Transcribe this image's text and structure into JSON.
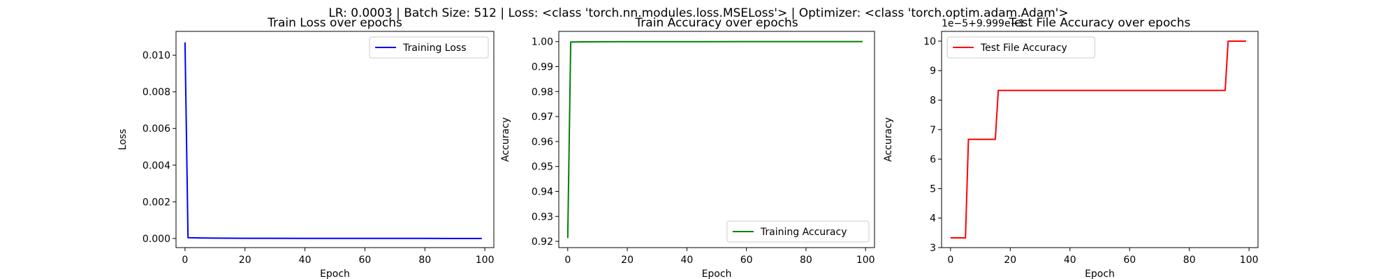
{
  "suptitle": "LR: 0.0003 | Batch Size: 512 | Loss: <class 'torch.nn.modules.loss.MSELoss'> | Optimizer: <class 'torch.optim.adam.Adam'>",
  "chart_data": [
    {
      "type": "line",
      "title": "Train Loss over epochs",
      "xlabel": "Epoch",
      "ylabel": "Loss",
      "xlim": [
        -3,
        103
      ],
      "ylim": [
        -0.0005,
        0.0113
      ],
      "xticks": [
        0,
        20,
        40,
        60,
        80,
        100
      ],
      "xtick_labels": [
        "0",
        "20",
        "40",
        "60",
        "80",
        "100"
      ],
      "yticks": [
        0,
        0.002,
        0.004,
        0.006,
        0.008,
        0.01
      ],
      "ytick_labels": [
        "0.000",
        "0.002",
        "0.004",
        "0.006",
        "0.008",
        "0.010"
      ],
      "offset_text": "",
      "legend_loc": "upper right",
      "grid": false,
      "series": [
        {
          "name": "Training Loss",
          "color": "#0000ff",
          "x": [
            0,
            1,
            5,
            10,
            20,
            40,
            60,
            80,
            99
          ],
          "y": [
            0.0107,
            4e-05,
            3e-05,
            2e-05,
            1e-05,
            5e-06,
            3e-06,
            2e-06,
            1e-06
          ]
        }
      ]
    },
    {
      "type": "line",
      "title": "Train Accuracy over epochs",
      "xlabel": "Epoch",
      "ylabel": "Accuracy",
      "xlim": [
        -3,
        103
      ],
      "ylim": [
        0.9175,
        1.0041
      ],
      "xticks": [
        0,
        20,
        40,
        60,
        80,
        100
      ],
      "xtick_labels": [
        "0",
        "20",
        "40",
        "60",
        "80",
        "100"
      ],
      "yticks": [
        0.92,
        0.93,
        0.94,
        0.95,
        0.96,
        0.97,
        0.98,
        0.99,
        1.0
      ],
      "ytick_labels": [
        "0.92",
        "0.93",
        "0.94",
        "0.95",
        "0.96",
        "0.97",
        "0.98",
        "0.99",
        "1.00"
      ],
      "offset_text": "",
      "legend_loc": "lower right",
      "grid": false,
      "series": [
        {
          "name": "Training Accuracy",
          "color": "#008000",
          "x": [
            0,
            1,
            5,
            10,
            20,
            40,
            60,
            80,
            99
          ],
          "y": [
            0.9213,
            0.99985,
            0.9999,
            0.99995,
            0.99998,
            0.99999,
            1.0,
            1.0,
            1.0
          ]
        }
      ]
    },
    {
      "type": "line",
      "title": "Test File Accuracy over epochs",
      "xlabel": "Epoch",
      "ylabel": "Accuracy",
      "xlim": [
        -3,
        103
      ],
      "ylim": [
        3,
        10.33
      ],
      "xticks": [
        0,
        20,
        40,
        60,
        80,
        100
      ],
      "xtick_labels": [
        "0",
        "20",
        "40",
        "60",
        "80",
        "100"
      ],
      "yticks": [
        3,
        4,
        5,
        6,
        7,
        8,
        9,
        10
      ],
      "ytick_labels": [
        "3",
        "4",
        "5",
        "6",
        "7",
        "8",
        "9",
        "10"
      ],
      "offset_text": "1e−5+9.999e−1",
      "legend_loc": "upper left",
      "grid": false,
      "series": [
        {
          "name": "Test File Accuracy",
          "color": "#ff0000",
          "x": [
            0,
            5,
            6,
            15,
            16,
            92,
            93,
            99
          ],
          "y": [
            3.33,
            3.33,
            6.67,
            6.67,
            8.33,
            8.33,
            10.0,
            10.0
          ]
        }
      ]
    }
  ]
}
